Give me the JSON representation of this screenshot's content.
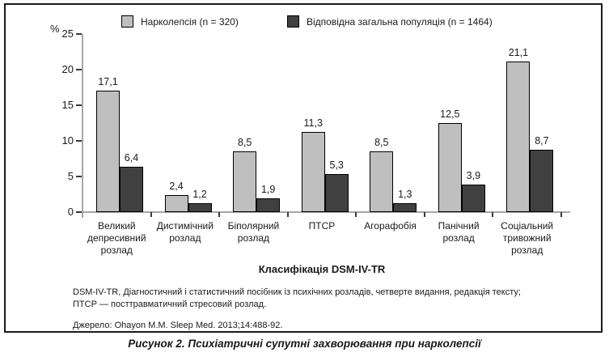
{
  "figure": {
    "caption": "Рисунок 2. Психіатричні супутні захворювання при нарколепсії",
    "footnote_line1": "DSM-IV-TR, Діагностичний і статистичний посібник із психічних розладів, четверте видання, редакція тексту;",
    "footnote_line2": "ПТСР — посттравматичний стресовий розлад.",
    "source": "Джерело: Ohayon M.M. Sleep Med. 2013;14:488-92."
  },
  "chart_data": {
    "type": "bar",
    "title": "",
    "xlabel": "Класифікація DSM-IV-TR",
    "ylabel": "%",
    "ylim": [
      0,
      25
    ],
    "yticks": [
      0,
      5,
      10,
      15,
      20,
      25
    ],
    "grid": false,
    "legend_position": "top",
    "decimal_separator": ",",
    "categories": [
      "Великий депресивний розлад",
      "Дистимічний розлад",
      "Біполярний розлад",
      "ПТСР",
      "Агорафобія",
      "Панічний розлад",
      "Соціальний тривожний розлад"
    ],
    "series": [
      {
        "name": "Нарколепсія (n = 320)",
        "color": "#bfbfbf",
        "values": [
          17.1,
          2.4,
          8.5,
          11.3,
          8.5,
          12.5,
          21.1
        ]
      },
      {
        "name": "Відповідна загальна популяція (n = 1464)",
        "color": "#404040",
        "values": [
          6.4,
          1.2,
          1.9,
          5.3,
          1.3,
          3.9,
          8.7
        ]
      }
    ]
  }
}
